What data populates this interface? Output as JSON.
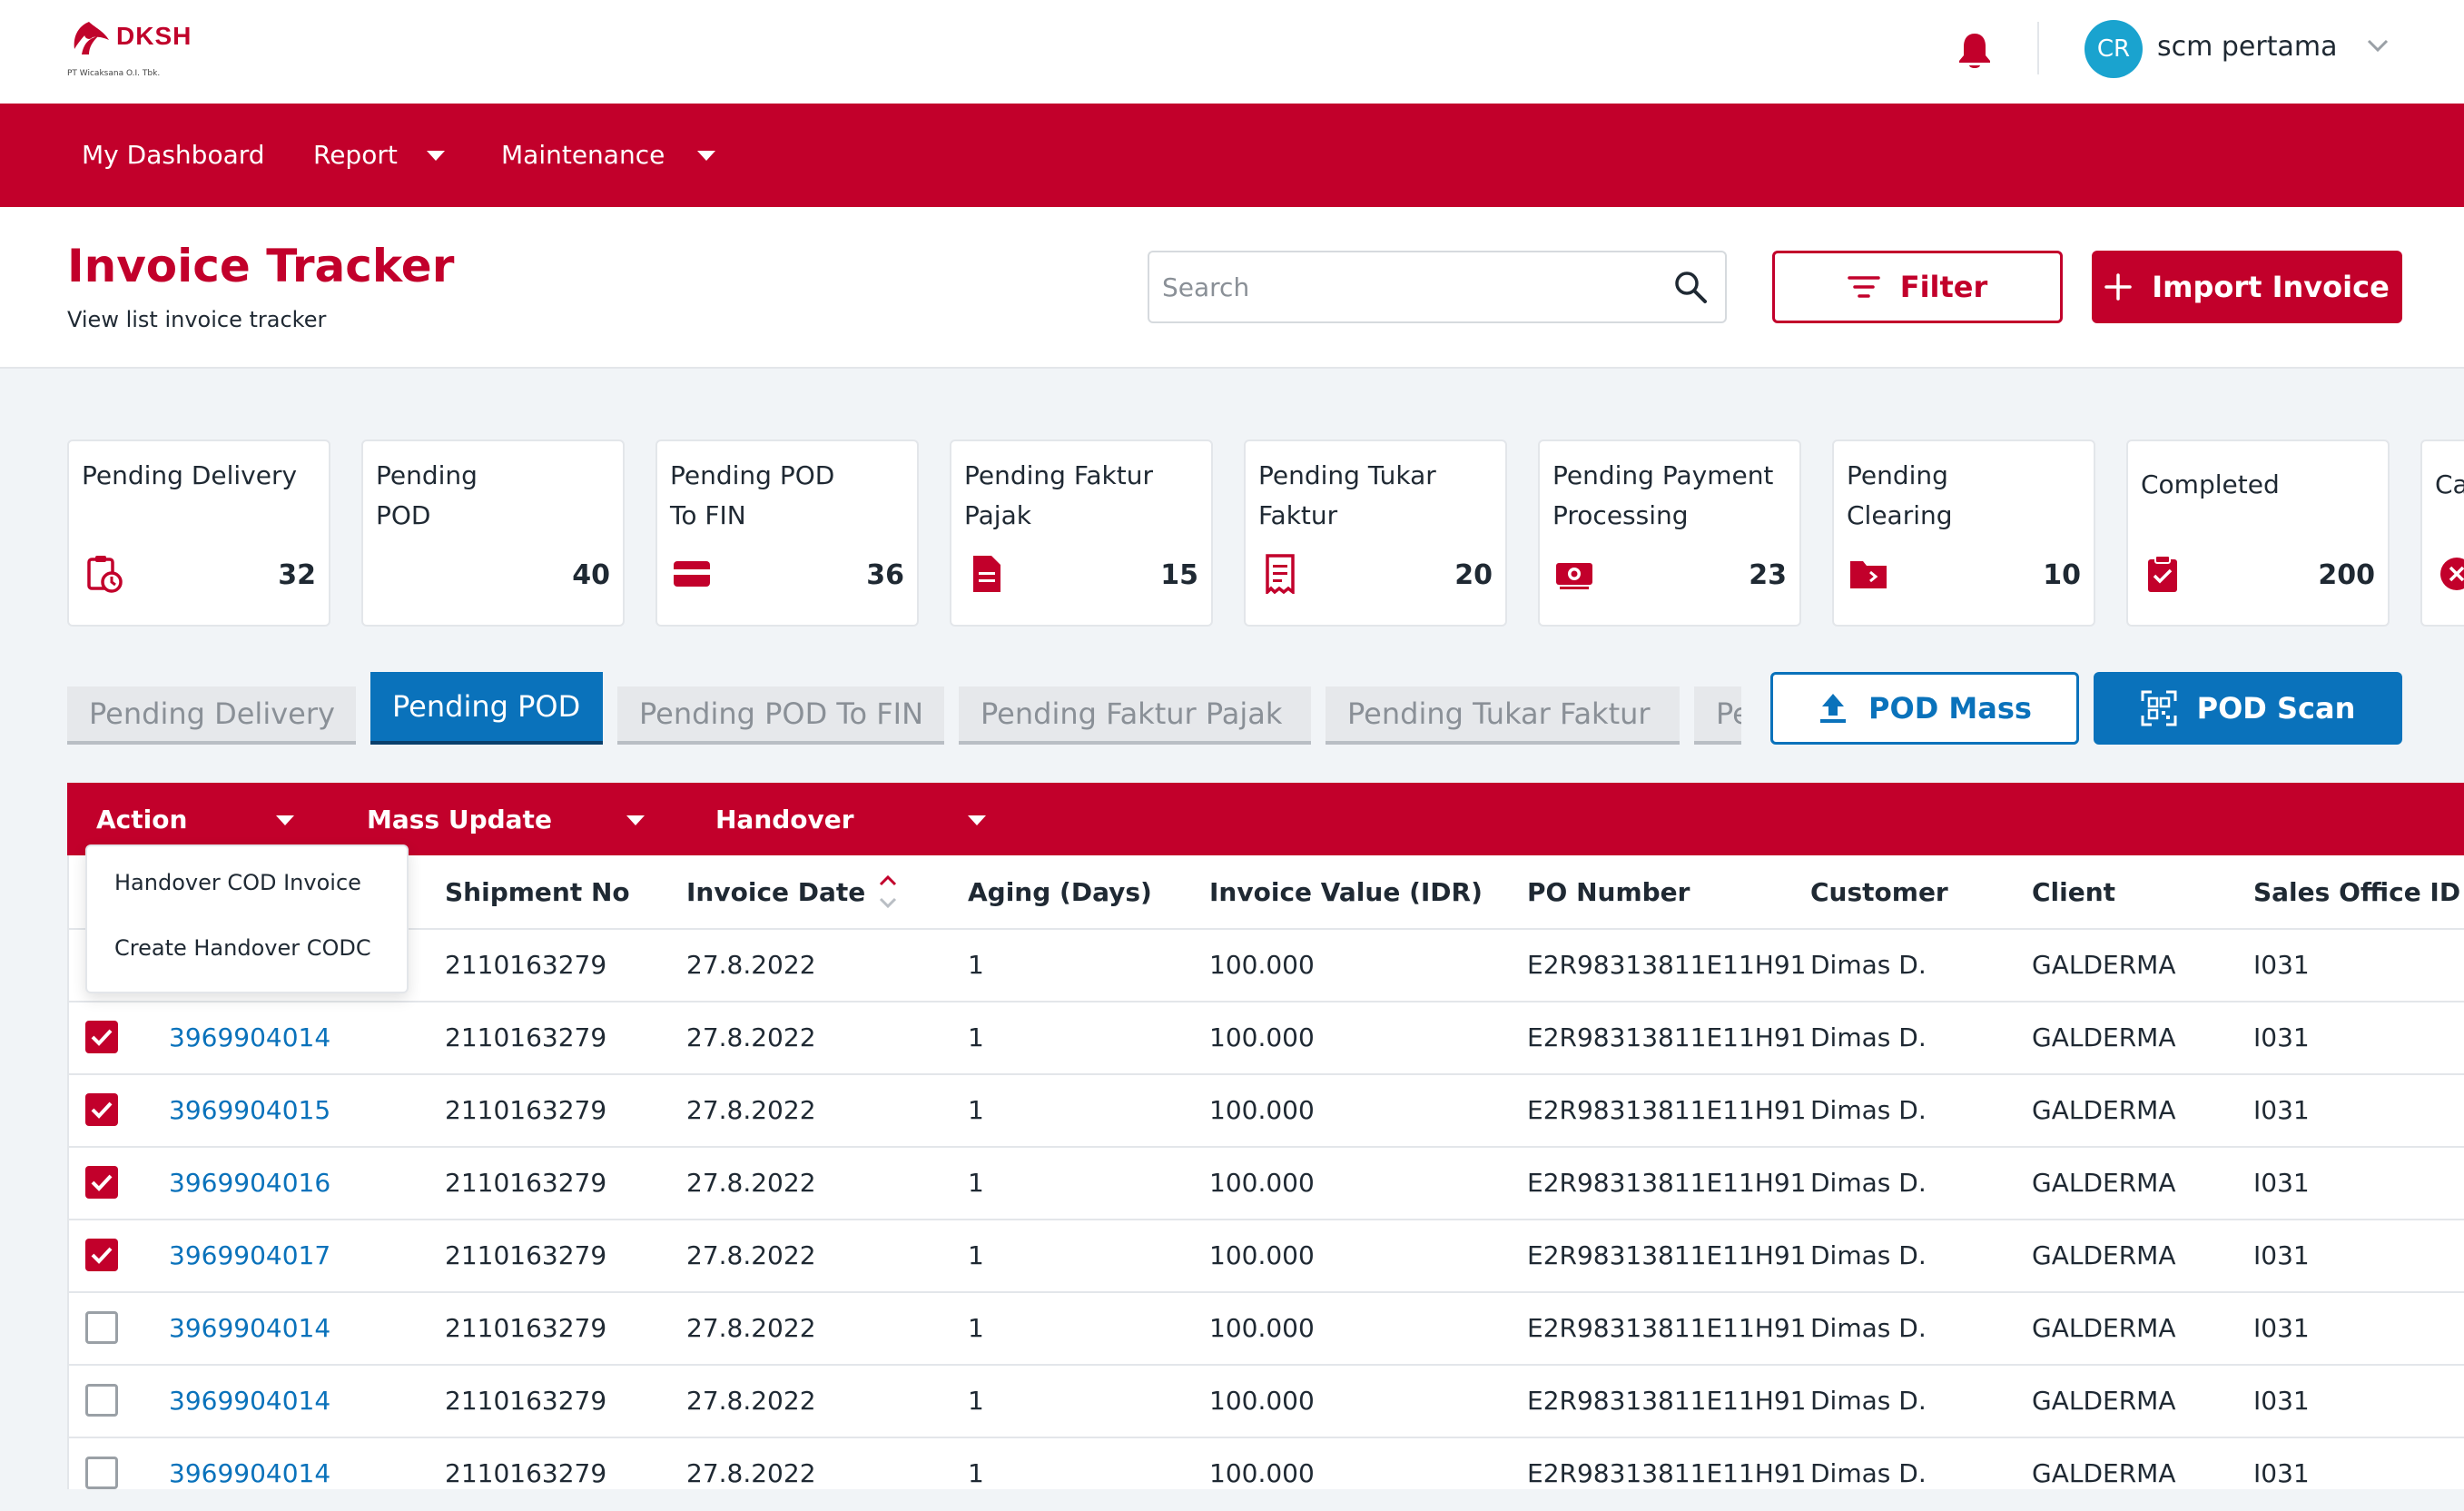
{
  "brand": {
    "name": "DKSH",
    "subtitle": "PT Wicaksana O.I. Tbk.",
    "logo_icon": "dksh-logo-icon"
  },
  "user": {
    "initials": "CR",
    "name": "scm pertama"
  },
  "nav": {
    "items": [
      "My Dashboard",
      "Report",
      "Maintenance"
    ]
  },
  "page": {
    "title": "Invoice Tracker",
    "subtitle": "View list invoice tracker"
  },
  "search": {
    "placeholder": "Search",
    "value": ""
  },
  "buttons": {
    "filter": "Filter",
    "import": "Import Invoice",
    "pod_mass": "POD Mass",
    "pod_scan": "POD Scan"
  },
  "cards": [
    {
      "label": "Pending Delivery",
      "count": "32",
      "icon": "clipboard-clock-icon"
    },
    {
      "label": "Pending POD",
      "count": "40",
      "icon": ""
    },
    {
      "label": "Pending POD To FIN",
      "count": "36",
      "icon": "credit-card-icon"
    },
    {
      "label": "Pending Faktur Pajak",
      "count": "15",
      "icon": "document-icon"
    },
    {
      "label": "Pending Tukar Faktur",
      "count": "20",
      "icon": "receipt-icon"
    },
    {
      "label": "Pending Payment Processing",
      "count": "23",
      "icon": "cash-icon"
    },
    {
      "label": "Pending Clearing",
      "count": "10",
      "icon": "folder-icon"
    },
    {
      "label": "Completed",
      "count": "200",
      "icon": "clipboard-check-icon"
    },
    {
      "label": "Ca",
      "count": "",
      "icon": "cancel-icon"
    }
  ],
  "tabs": [
    {
      "label": "Pending Delivery",
      "active": false
    },
    {
      "label": "Pending POD",
      "active": true
    },
    {
      "label": "Pending POD To FIN",
      "active": false
    },
    {
      "label": "Pending Faktur Pajak",
      "active": false
    },
    {
      "label": "Pending Tukar Faktur",
      "active": false
    },
    {
      "label": "Pe",
      "active": false
    }
  ],
  "action_bar": {
    "action": "Action",
    "mass_update": "Mass Update",
    "handover": "Handover"
  },
  "dropdown": {
    "items": [
      "Handover COD Invoice",
      "Create Handover CODC"
    ]
  },
  "table": {
    "headers": [
      "Shipment No",
      "Invoice Date",
      "Aging (Days)",
      "Invoice Value (IDR)",
      "PO Number",
      "Customer",
      "Client",
      "Sales Office ID"
    ],
    "rows": [
      {
        "checked": null,
        "invoice": "",
        "shipment": "2110163279",
        "date": "27.8.2022",
        "aging": "1",
        "value": "100.000",
        "po": "E2R98313811E11H91",
        "customer": "Dimas D.",
        "client": "GALDERMA",
        "office": "I031"
      },
      {
        "checked": true,
        "invoice": "3969904014",
        "shipment": "2110163279",
        "date": "27.8.2022",
        "aging": "1",
        "value": "100.000",
        "po": "E2R98313811E11H91",
        "customer": "Dimas D.",
        "client": "GALDERMA",
        "office": "I031"
      },
      {
        "checked": true,
        "invoice": "3969904015",
        "shipment": "2110163279",
        "date": "27.8.2022",
        "aging": "1",
        "value": "100.000",
        "po": "E2R98313811E11H91",
        "customer": "Dimas D.",
        "client": "GALDERMA",
        "office": "I031"
      },
      {
        "checked": true,
        "invoice": "3969904016",
        "shipment": "2110163279",
        "date": "27.8.2022",
        "aging": "1",
        "value": "100.000",
        "po": "E2R98313811E11H91",
        "customer": "Dimas D.",
        "client": "GALDERMA",
        "office": "I031"
      },
      {
        "checked": true,
        "invoice": "3969904017",
        "shipment": "2110163279",
        "date": "27.8.2022",
        "aging": "1",
        "value": "100.000",
        "po": "E2R98313811E11H91",
        "customer": "Dimas D.",
        "client": "GALDERMA",
        "office": "I031"
      },
      {
        "checked": false,
        "invoice": "3969904014",
        "shipment": "2110163279",
        "date": "27.8.2022",
        "aging": "1",
        "value": "100.000",
        "po": "E2R98313811E11H91",
        "customer": "Dimas D.",
        "client": "GALDERMA",
        "office": "I031"
      },
      {
        "checked": false,
        "invoice": "3969904014",
        "shipment": "2110163279",
        "date": "27.8.2022",
        "aging": "1",
        "value": "100.000",
        "po": "E2R98313811E11H91",
        "customer": "Dimas D.",
        "client": "GALDERMA",
        "office": "I031"
      },
      {
        "checked": false,
        "invoice": "3969904014",
        "shipment": "2110163279",
        "date": "27.8.2022",
        "aging": "1",
        "value": "100.000",
        "po": "E2R98313811E11H91",
        "customer": "Dimas D.",
        "client": "GALDERMA",
        "office": "I031"
      }
    ]
  },
  "colors": {
    "brand_red": "#c2002b",
    "brand_blue": "#0a72bb",
    "avatar": "#1aa3cf"
  }
}
